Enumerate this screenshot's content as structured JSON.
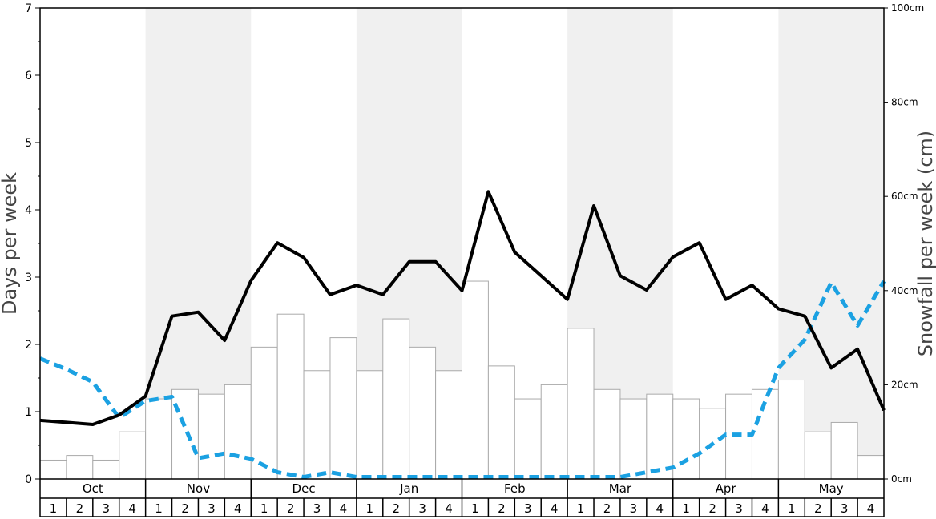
{
  "chart_data": {
    "type": "bar",
    "left_axis": {
      "title": "Days per week",
      "ylim": [
        0,
        7
      ],
      "ticks": [
        "0",
        "1",
        "2",
        "3",
        "4",
        "5",
        "6",
        "7"
      ]
    },
    "right_axis": {
      "title": "Snowfall per week (cm)",
      "ylim": [
        0,
        100
      ],
      "ticks": [
        "0cm",
        "20cm",
        "40cm",
        "60cm",
        "80cm",
        "100cm"
      ]
    },
    "months": [
      "Oct",
      "Nov",
      "Dec",
      "Jan",
      "Feb",
      "Mar",
      "Apr",
      "May"
    ],
    "weeks": [
      "1",
      "2",
      "3",
      "4"
    ],
    "shaded_months": [
      1,
      3,
      5,
      7
    ],
    "grid": false,
    "legend": "none",
    "colors": {
      "bars_fill": "#ffffff",
      "bars_stroke": "#aaaaaa",
      "line_solid": "#000000",
      "line_dashed": "#1ba1e2",
      "shade": "#f0f0f0"
    },
    "series": [
      {
        "type": "bar",
        "axis": "right",
        "unit": "cm",
        "values": [
          4,
          5,
          4,
          10,
          17,
          19,
          18,
          20,
          28,
          35,
          23,
          30,
          23,
          34,
          28,
          23,
          42,
          24,
          17,
          20,
          32,
          19,
          17,
          18,
          17,
          15,
          18,
          19,
          21,
          10,
          12,
          5
        ]
      },
      {
        "type": "line",
        "style": "solid",
        "axis": "left",
        "values": [
          0.87,
          0.84,
          0.81,
          0.95,
          1.23,
          2.42,
          2.48,
          2.06,
          2.95,
          3.51,
          3.29,
          2.74,
          2.88,
          2.74,
          3.23,
          3.23,
          2.8,
          4.27,
          3.37,
          3.02,
          2.67,
          4.06,
          3.02,
          2.81,
          3.3,
          3.51,
          2.67,
          2.88,
          2.53,
          2.42,
          1.65,
          1.93,
          1.02
        ]
      },
      {
        "type": "line",
        "style": "dashed",
        "axis": "left",
        "values": [
          1.79,
          1.63,
          1.44,
          0.91,
          1.16,
          1.22,
          0.31,
          0.38,
          0.3,
          0.1,
          0.03,
          0.1,
          0.03,
          0.03,
          0.03,
          0.03,
          0.03,
          0.03,
          0.03,
          0.03,
          0.03,
          0.03,
          0.03,
          0.1,
          0.17,
          0.38,
          0.66,
          0.66,
          1.65,
          2.07,
          2.92,
          2.28,
          2.94
        ]
      }
    ]
  }
}
